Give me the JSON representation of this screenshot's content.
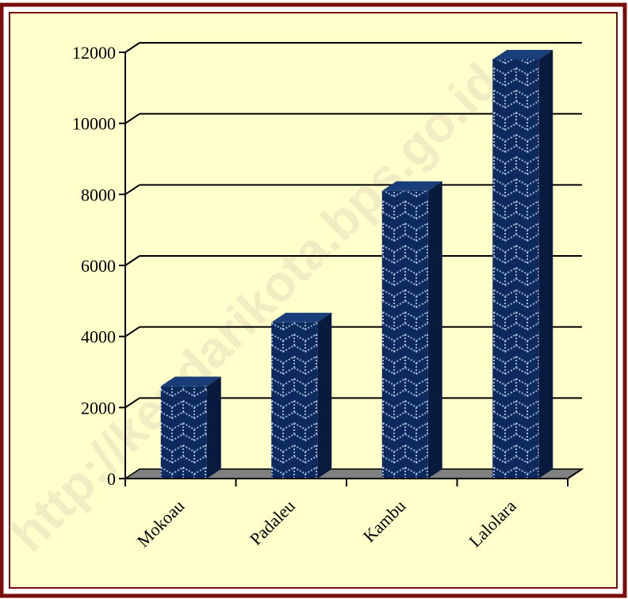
{
  "watermark": "http://kendarikota.bps.go.id",
  "colors": {
    "border": "#7b0d0d",
    "plot_background": "#ffffcc",
    "bar_front": "#0d2a5e",
    "bar_pattern": "#9fb6d6",
    "bar_side": "#081a3e",
    "bar_top": "#1a3e7a",
    "floor": "#808080"
  },
  "chart_data": {
    "type": "bar",
    "title": "",
    "xlabel": "",
    "ylabel": "",
    "categories": [
      "Mokoau",
      "Padaleu",
      "Kambu",
      "Lalolara"
    ],
    "values": [
      2600,
      4400,
      8100,
      11800
    ],
    "ylim": [
      0,
      12000
    ],
    "yticks": [
      "0",
      "2000",
      "4000",
      "6000",
      "8000",
      "10000",
      "12000"
    ],
    "grid": true,
    "legend": "none"
  }
}
